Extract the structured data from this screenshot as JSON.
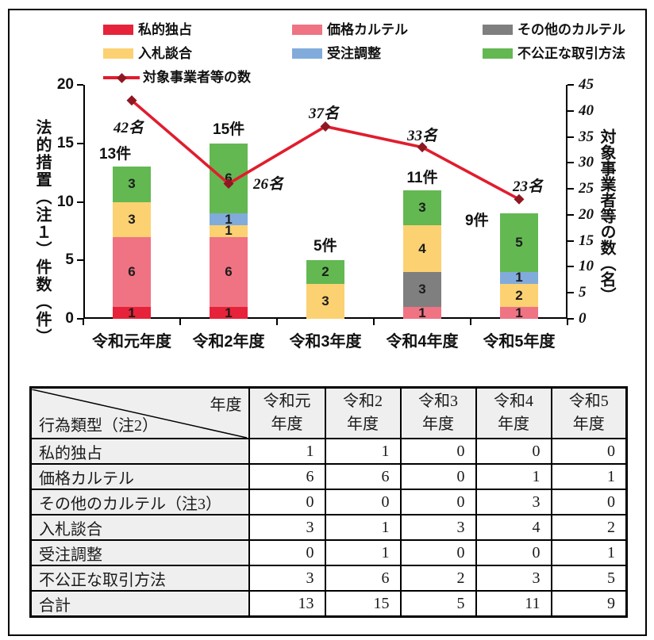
{
  "chart_data": {
    "type": "bar",
    "variant": "stacked-column-with-line",
    "legend_position": "top",
    "categories": [
      "令和元年度",
      "令和2年度",
      "令和3年度",
      "令和4年度",
      "令和5年度"
    ],
    "series": [
      {
        "name": "私的独占",
        "color": "#e6233a",
        "values": [
          1,
          1,
          0,
          0,
          0
        ]
      },
      {
        "name": "価格カルテル",
        "color": "#ef7383",
        "values": [
          6,
          6,
          0,
          1,
          1
        ]
      },
      {
        "name": "その他のカルテル",
        "color": "#7f7f7f",
        "values": [
          0,
          0,
          0,
          3,
          0
        ]
      },
      {
        "name": "入札談合",
        "color": "#fbd172",
        "values": [
          3,
          1,
          3,
          4,
          2
        ]
      },
      {
        "name": "受注調整",
        "color": "#81abdb",
        "values": [
          0,
          1,
          0,
          0,
          1
        ]
      },
      {
        "name": "不公正な取引方法",
        "color": "#63b852",
        "values": [
          3,
          6,
          2,
          3,
          5
        ]
      }
    ],
    "line_series": {
      "name": "対象事業者等の数",
      "color": "#e01d2e",
      "marker_color": "#8f1722",
      "values": [
        42,
        26,
        37,
        33,
        23
      ],
      "point_labels": [
        "42名",
        "26名",
        "37名",
        "33名",
        "23名"
      ]
    },
    "bar_total_labels": [
      "13件",
      "15件",
      "5件",
      "11件",
      "9件"
    ],
    "ylabel_left": "法的措置（注１）件数（件）",
    "ylabel_right": "対象事業者等の数（名）",
    "axes": {
      "left": {
        "min": 0,
        "max": 20,
        "step": 5,
        "tick_labels": [
          "0",
          "5",
          "10",
          "15",
          "20"
        ]
      },
      "right": {
        "min": 0,
        "max": 45,
        "step": 5,
        "tick_labels": [
          "0",
          "5",
          "10",
          "15",
          "20",
          "25",
          "30",
          "35",
          "40",
          "45"
        ]
      }
    }
  },
  "table": {
    "corner": {
      "top_right": "年度",
      "bottom_left": "行為類型（注2）"
    },
    "col_headers": [
      {
        "line1": "令和元",
        "line2": "年度"
      },
      {
        "line1": "令和2",
        "line2": "年度"
      },
      {
        "line1": "令和3",
        "line2": "年度"
      },
      {
        "line1": "令和4",
        "line2": "年度"
      },
      {
        "line1": "令和5",
        "line2": "年度"
      }
    ],
    "rows": [
      {
        "label": "私的独占",
        "values": [
          1,
          1,
          0,
          0,
          0
        ]
      },
      {
        "label": "価格カルテル",
        "values": [
          6,
          6,
          0,
          1,
          1
        ]
      },
      {
        "label": "その他のカルテル（注3）",
        "values": [
          0,
          0,
          0,
          3,
          0
        ]
      },
      {
        "label": "入札談合",
        "values": [
          3,
          1,
          3,
          4,
          2
        ]
      },
      {
        "label": "受注調整",
        "values": [
          0,
          1,
          0,
          0,
          1
        ]
      },
      {
        "label": "不公正な取引方法",
        "values": [
          3,
          6,
          2,
          3,
          5
        ]
      },
      {
        "label": "合計",
        "values": [
          13,
          15,
          5,
          11,
          9
        ]
      }
    ]
  }
}
